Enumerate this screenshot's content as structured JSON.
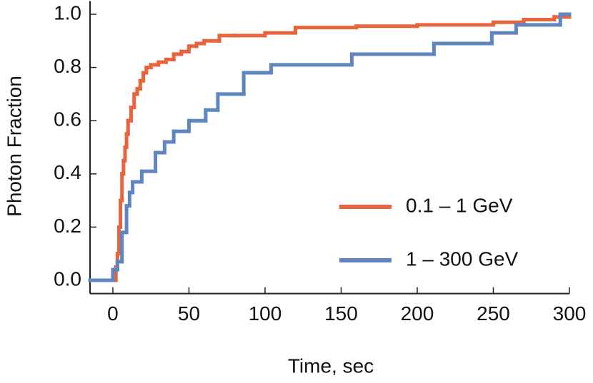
{
  "chart_data": {
    "type": "line",
    "step": true,
    "x_label": "Time, sec",
    "y_label": "Photon Fraction",
    "xlim": [
      -15,
      300
    ],
    "ylim": [
      -0.05,
      1.05
    ],
    "xticks": [
      0,
      50,
      100,
      150,
      200,
      250,
      300
    ],
    "yticks": [
      {
        "value": 0,
        "label": "0.0"
      },
      {
        "value": 0.2,
        "label": "0.2"
      },
      {
        "value": 0.4,
        "label": "0.4"
      },
      {
        "value": 0.6,
        "label": "0.6"
      },
      {
        "value": 0.8,
        "label": "0.8"
      },
      {
        "value": 1,
        "label": "1.0"
      }
    ],
    "legend": "lower right",
    "series": [
      {
        "name": "0.1 – 1 GeV",
        "color": "#e8643c",
        "x": [
          -15,
          0,
          2,
          3,
          4,
          5,
          6,
          7,
          8,
          9,
          10,
          12,
          14,
          16,
          18,
          20,
          22,
          25,
          30,
          35,
          40,
          45,
          50,
          55,
          60,
          70,
          80,
          100,
          120,
          160,
          200,
          250,
          270,
          290,
          300
        ],
        "values": [
          0,
          0,
          0.05,
          0.1,
          0.2,
          0.3,
          0.4,
          0.45,
          0.5,
          0.55,
          0.6,
          0.65,
          0.7,
          0.72,
          0.75,
          0.78,
          0.8,
          0.81,
          0.82,
          0.83,
          0.85,
          0.86,
          0.88,
          0.89,
          0.9,
          0.92,
          0.92,
          0.93,
          0.95,
          0.955,
          0.96,
          0.97,
          0.98,
          0.99,
          1.0
        ]
      },
      {
        "name": "1 – 300 GeV",
        "color": "#5f86c0",
        "x": [
          -15,
          0,
          3,
          6,
          9,
          11,
          13,
          19,
          28,
          34,
          40,
          50,
          61,
          69,
          86,
          104,
          157,
          211,
          249,
          265,
          294,
          300
        ],
        "values": [
          0,
          0.04,
          0.07,
          0.18,
          0.28,
          0.33,
          0.37,
          0.41,
          0.48,
          0.52,
          0.56,
          0.6,
          0.64,
          0.7,
          0.78,
          0.81,
          0.85,
          0.89,
          0.93,
          0.96,
          1.0,
          1.0
        ]
      }
    ]
  }
}
